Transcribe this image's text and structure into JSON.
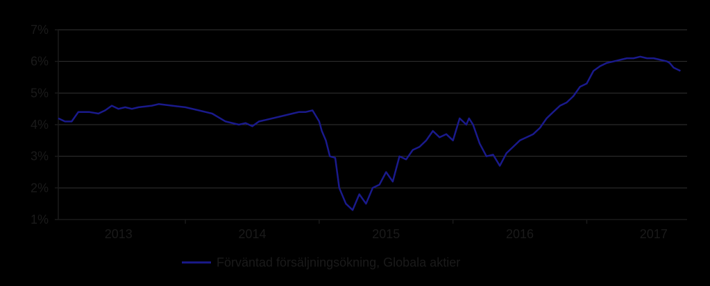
{
  "chart_data": {
    "type": "line",
    "title": "",
    "xlabel": "",
    "ylabel": "",
    "ylim": [
      1,
      7
    ],
    "yticks": [
      "1%",
      "2%",
      "3%",
      "4%",
      "5%",
      "6%",
      "7%"
    ],
    "xticks": [
      "2013",
      "2014",
      "2015",
      "2016",
      "2017"
    ],
    "x_range": [
      2012.55,
      2017.25
    ],
    "grid": "horizontal",
    "legend": "bottom-center",
    "colors": {
      "background": "#000000",
      "axes": "#1a1a1a",
      "grid": "#333333",
      "line": "#1a1a8c"
    },
    "series": [
      {
        "name": "Förväntad försäljningsökning, Globala aktier",
        "color": "#1a1a8c",
        "x": [
          2012.55,
          2012.6,
          2012.65,
          2012.7,
          2012.75,
          2012.78,
          2012.85,
          2012.9,
          2012.95,
          2013.0,
          2013.05,
          2013.1,
          2013.15,
          2013.25,
          2013.3,
          2013.4,
          2013.5,
          2013.6,
          2013.65,
          2013.7,
          2013.8,
          2013.9,
          2013.95,
          2014.0,
          2014.05,
          2014.1,
          2014.2,
          2014.3,
          2014.35,
          2014.4,
          2014.45,
          2014.5,
          2014.52,
          2014.55,
          2014.58,
          2014.62,
          2014.65,
          2014.7,
          2014.75,
          2014.8,
          2014.85,
          2014.9,
          2014.95,
          2015.0,
          2015.05,
          2015.1,
          2015.15,
          2015.2,
          2015.25,
          2015.3,
          2015.35,
          2015.4,
          2015.45,
          2015.5,
          2015.55,
          2015.6,
          2015.62,
          2015.65,
          2015.7,
          2015.75,
          2015.8,
          2015.85,
          2015.9,
          2015.95,
          2016.0,
          2016.05,
          2016.1,
          2016.15,
          2016.2,
          2016.25,
          2016.3,
          2016.35,
          2016.4,
          2016.45,
          2016.5,
          2016.55,
          2016.6,
          2016.65,
          2016.7,
          2016.75,
          2016.8,
          2016.85,
          2016.9,
          2016.95,
          2017.0,
          2017.05,
          2017.1,
          2017.12,
          2017.15,
          2017.2
        ],
        "values": [
          4.2,
          4.1,
          4.1,
          4.4,
          4.4,
          4.4,
          4.35,
          4.45,
          4.6,
          4.5,
          4.55,
          4.5,
          4.55,
          4.6,
          4.65,
          4.6,
          4.55,
          4.45,
          4.4,
          4.35,
          4.1,
          4.0,
          4.05,
          3.95,
          4.1,
          4.15,
          4.25,
          4.35,
          4.4,
          4.4,
          4.45,
          4.1,
          3.8,
          3.5,
          3.0,
          2.95,
          2.0,
          1.5,
          1.3,
          1.8,
          1.5,
          2.0,
          2.1,
          2.5,
          2.2,
          3.0,
          2.9,
          3.2,
          3.3,
          3.5,
          3.8,
          3.6,
          3.7,
          3.5,
          4.2,
          4.0,
          4.2,
          4.0,
          3.4,
          3.0,
          3.05,
          2.7,
          3.1,
          3.3,
          3.5,
          3.6,
          3.7,
          3.9,
          4.2,
          4.4,
          4.6,
          4.7,
          4.9,
          5.2,
          5.3,
          5.7,
          5.85,
          5.95,
          6.0,
          6.05,
          6.1,
          6.1,
          6.15,
          6.1,
          6.1,
          6.05,
          6.0,
          5.95,
          5.8,
          5.7
        ]
      }
    ]
  }
}
